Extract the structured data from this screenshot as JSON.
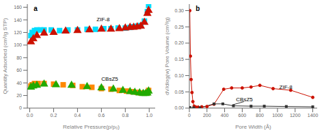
{
  "chart_data": [
    {
      "type": "scatter",
      "title": "a",
      "x_label": "Relative Pressure(p/p₀)",
      "y_label": "Quantity Adsorbed (cm³/g STP)",
      "xlim": [
        -0.02,
        1.05
      ],
      "ylim": [
        0,
        165
      ],
      "xticks": [
        {
          "value": 0,
          "label": "0.0"
        },
        0.2,
        0.4,
        0.6,
        0.8,
        {
          "value": 1,
          "label": "1.0"
        }
      ],
      "yticks": [
        0,
        20,
        40,
        60,
        80,
        100,
        120,
        140,
        160
      ],
      "grid": false,
      "series": [
        {
          "color": "#00DDFF",
          "marker": "square",
          "x": [
            0.01,
            0.02,
            0.04,
            0.06,
            0.09,
            0.12,
            0.18,
            0.25,
            0.32,
            0.4,
            0.48,
            0.55,
            0.62,
            0.68,
            0.74,
            0.8,
            0.84,
            0.87,
            0.9,
            0.93,
            0.96,
            0.985,
            0.995
          ],
          "values": [
            115,
            120,
            123,
            124,
            124,
            124,
            124,
            123,
            124,
            124,
            125,
            125,
            126,
            126,
            127,
            127,
            128,
            129,
            130,
            131,
            138,
            153,
            163
          ]
        },
        {
          "color": "#CC1100",
          "marker": "triangle",
          "x": [
            0.01,
            0.03,
            0.06,
            0.12,
            0.2,
            0.3,
            0.4,
            0.5,
            0.6,
            0.68,
            0.75,
            0.8,
            0.84,
            0.87,
            0.9,
            0.93,
            0.96,
            0.985,
            0.995
          ],
          "values": [
            105,
            110,
            115,
            119,
            120,
            122,
            123,
            124,
            125,
            125,
            126,
            127,
            128,
            128,
            129,
            130,
            136,
            150,
            155
          ]
        },
        {
          "color": "#FF8800",
          "marker": "square",
          "x": [
            0.01,
            0.02,
            0.04,
            0.07,
            0.12,
            0.2,
            0.28,
            0.36,
            0.44,
            0.52,
            0.6,
            0.68,
            0.75,
            0.81,
            0.86,
            0.9,
            0.93,
            0.96,
            0.985,
            0.995
          ],
          "values": [
            35,
            37,
            39,
            39,
            39,
            38,
            37,
            36,
            34,
            33,
            31,
            30,
            28,
            27,
            26,
            25,
            24,
            24,
            24,
            28
          ]
        },
        {
          "color": "#22AA00",
          "marker": "triangle",
          "x": [
            0.01,
            0.03,
            0.06,
            0.12,
            0.22,
            0.35,
            0.48,
            0.6,
            0.7,
            0.78,
            0.84,
            0.88,
            0.92,
            0.95,
            0.97,
            0.985,
            0.995
          ],
          "values": [
            33,
            35,
            36,
            38,
            37,
            36,
            34,
            32,
            30,
            28,
            26,
            25,
            24,
            23,
            23,
            24,
            27
          ]
        }
      ],
      "annotations": [
        {
          "text": "ZIF-8",
          "x": 0.56,
          "y": 138
        },
        {
          "text": "CBsZ5",
          "x": 0.6,
          "y": 43
        }
      ]
    },
    {
      "type": "line",
      "title": "b",
      "x_label": "Pore Width (Å)",
      "y_label": "dV/dlog(w) Pore Volume (cm³/g)",
      "xlim": [
        0,
        1450
      ],
      "ylim": [
        0,
        0.32
      ],
      "xticks": [
        0,
        200,
        400,
        600,
        800,
        1000,
        1200,
        1400
      ],
      "yticks": [
        {
          "value": 0,
          "label": "0.00"
        },
        0.05,
        {
          "value": 0.1,
          "label": "0.10"
        },
        0.15,
        {
          "value": 0.2,
          "label": "0.20"
        },
        0.25,
        {
          "value": 0.3,
          "label": "0.30"
        }
      ],
      "grid": false,
      "series": [
        {
          "color": "#CC1100",
          "marker": "circle",
          "x": [
            5,
            12,
            20,
            30,
            40,
            55,
            75,
            100,
            140,
            200,
            280,
            390,
            480,
            600,
            700,
            800,
            950,
            1150,
            1400
          ],
          "values": [
            0.3,
            0.16,
            0.088,
            0.048,
            0.02,
            0.006,
            0.003,
            0.003,
            0.004,
            0.005,
            0.012,
            0.058,
            0.062,
            0.062,
            0.065,
            0.07,
            0.06,
            0.055,
            0.033
          ]
        },
        {
          "color": "#333333",
          "marker": "square",
          "x": [
            5,
            50,
            120,
            280,
            380,
            500,
            700,
            850,
            1100,
            1400
          ],
          "values": [
            0.002,
            0.001,
            0.001,
            0.013,
            0.013,
            0.007,
            0.006,
            0.006,
            0.005,
            0.004
          ]
        }
      ],
      "annotations": [
        {
          "text": "ZIF-8",
          "x": 1020,
          "y": 0.06
        },
        {
          "text": "CBsZ5",
          "x": 530,
          "y": 0.022
        }
      ],
      "connector": {
        "x": [
          620,
          490
        ],
        "y": [
          0.02,
          0.01
        ]
      }
    }
  ]
}
